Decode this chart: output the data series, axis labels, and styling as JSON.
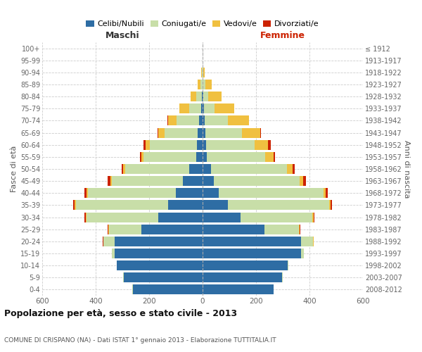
{
  "age_groups": [
    "0-4",
    "5-9",
    "10-14",
    "15-19",
    "20-24",
    "25-29",
    "30-34",
    "35-39",
    "40-44",
    "45-49",
    "50-54",
    "55-59",
    "60-64",
    "65-69",
    "70-74",
    "75-79",
    "80-84",
    "85-89",
    "90-94",
    "95-99",
    "100+"
  ],
  "birth_years": [
    "2008-2012",
    "2003-2007",
    "1998-2002",
    "1993-1997",
    "1988-1992",
    "1983-1987",
    "1978-1982",
    "1973-1977",
    "1968-1972",
    "1963-1967",
    "1958-1962",
    "1953-1957",
    "1948-1952",
    "1943-1947",
    "1938-1942",
    "1933-1937",
    "1928-1932",
    "1923-1927",
    "1918-1922",
    "1913-1917",
    "≤ 1912"
  ],
  "male": {
    "celibi": [
      260,
      295,
      320,
      330,
      330,
      230,
      165,
      130,
      100,
      75,
      50,
      25,
      22,
      18,
      12,
      5,
      2,
      1,
      1,
      0,
      0
    ],
    "coniugati": [
      2,
      2,
      2,
      10,
      40,
      120,
      270,
      345,
      330,
      265,
      240,
      195,
      175,
      125,
      85,
      45,
      22,
      8,
      2,
      0,
      0
    ],
    "vedovi": [
      0,
      0,
      0,
      0,
      2,
      3,
      3,
      5,
      5,
      5,
      8,
      10,
      15,
      22,
      32,
      38,
      22,
      10,
      2,
      0,
      0
    ],
    "divorziati": [
      0,
      0,
      0,
      0,
      2,
      3,
      3,
      5,
      8,
      10,
      5,
      5,
      8,
      3,
      2,
      0,
      0,
      0,
      0,
      0,
      0
    ]
  },
  "female": {
    "nubili": [
      265,
      298,
      318,
      368,
      368,
      232,
      142,
      95,
      60,
      42,
      32,
      16,
      12,
      10,
      8,
      4,
      2,
      1,
      1,
      0,
      0
    ],
    "coniugate": [
      2,
      2,
      3,
      10,
      45,
      128,
      268,
      378,
      392,
      322,
      285,
      218,
      182,
      138,
      88,
      42,
      18,
      10,
      2,
      1,
      0
    ],
    "vedove": [
      0,
      0,
      0,
      0,
      2,
      3,
      5,
      5,
      8,
      12,
      20,
      32,
      52,
      68,
      78,
      72,
      52,
      22,
      4,
      0,
      0
    ],
    "divorziate": [
      0,
      0,
      0,
      0,
      2,
      2,
      3,
      5,
      8,
      10,
      8,
      5,
      8,
      2,
      0,
      0,
      0,
      0,
      0,
      0,
      0
    ]
  },
  "colors": {
    "celibi": "#2e6da4",
    "coniugati": "#c8dea8",
    "vedovi": "#f0c040",
    "divorziati": "#cc2200"
  },
  "xlim": 600,
  "title": "Popolazione per età, sesso e stato civile - 2013",
  "subtitle": "COMUNE DI CRISPANO (NA) - Dati ISTAT 1° gennaio 2013 - Elaborazione TUTTITALIA.IT",
  "legend_labels": [
    "Celibi/Nubili",
    "Coniugati/e",
    "Vedovi/e",
    "Divorziati/e"
  ],
  "xlabel_maschi": "Maschi",
  "xlabel_femmine": "Femmine",
  "ylabel_left": "Fasce di età",
  "ylabel_right": "Anni di nascita"
}
